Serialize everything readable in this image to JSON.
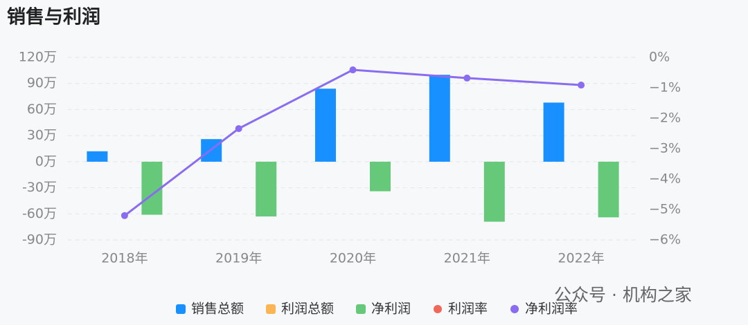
{
  "chart_data": {
    "type": "bar",
    "title": "销售与利润",
    "watermark": "公众号 · 机构之家",
    "categories": [
      "2018年",
      "2019年",
      "2020年",
      "2021年",
      "2022年"
    ],
    "series": [
      {
        "name": "销售总额",
        "type": "bar",
        "color": "#1890ff",
        "values": [
          12,
          26,
          84,
          100,
          68
        ]
      },
      {
        "name": "利润总额",
        "type": "bar",
        "color": "#fbb554",
        "values": [
          null,
          null,
          null,
          null,
          null
        ]
      },
      {
        "name": "净利润",
        "type": "bar",
        "color": "#66c979",
        "values": [
          -61,
          -63,
          -34,
          -69,
          -64
        ]
      },
      {
        "name": "利润率",
        "type": "line",
        "axis": "y2",
        "color": "#f0685a",
        "values": [
          null,
          null,
          null,
          null,
          null
        ]
      },
      {
        "name": "净利润率",
        "type": "line",
        "axis": "y2",
        "color": "#8a6cf0",
        "values": [
          -5.2,
          -2.34,
          -0.41,
          -0.68,
          -0.91
        ]
      }
    ],
    "ylim": [
      -90,
      120
    ],
    "yticks": [
      {
        "value": 120,
        "label": "120万"
      },
      {
        "value": 90,
        "label": "90万"
      },
      {
        "value": 60,
        "label": "60万"
      },
      {
        "value": 30,
        "label": "30万"
      },
      {
        "value": 0,
        "label": "0万"
      },
      {
        "value": -30,
        "label": "-30万"
      },
      {
        "value": -60,
        "label": "-60万"
      },
      {
        "value": -90,
        "label": "-90万"
      }
    ],
    "y2lim": [
      -6,
      0
    ],
    "y2ticks": [
      {
        "value": 0,
        "label": "0%"
      },
      {
        "value": -1,
        "label": "−1%"
      },
      {
        "value": -2,
        "label": "−2%"
      },
      {
        "value": -3,
        "label": "−3%"
      },
      {
        "value": -4,
        "label": "−4%"
      },
      {
        "value": -5,
        "label": "−5%"
      },
      {
        "value": -6,
        "label": "−6%"
      }
    ],
    "grid": true
  }
}
